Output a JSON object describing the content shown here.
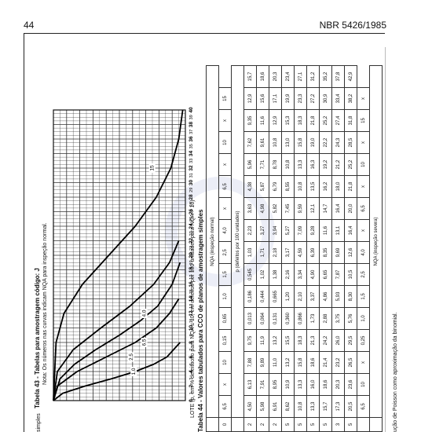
{
  "header": {
    "page_number": "44",
    "doc_code": "NBR 5426/1985"
  },
  "side_notes": {
    "simples_top": "simples",
    "poisson": "ução de Poisson como aproximação da binomial."
  },
  "table43": {
    "title": "Tabela 43 - Tabelas para amostragem código: J",
    "note": "Nota: Os números nas curvas indicam NQA para inspeção normal.",
    "lote": "LOTE (p, em % defeituoso para NQA ≤ 10; em defeitos por 100 unidades para NQA > 10)",
    "curve_labels": [
      "15",
      "6,5",
      "4,0",
      "2,5",
      "1,0"
    ],
    "x_ticks": [
      "0",
      "2",
      "4",
      "6",
      "8",
      "10",
      "12",
      "14",
      "16",
      "18",
      "20",
      "22",
      "24",
      "26",
      "28",
      "30",
      "32",
      "34",
      "36",
      "38",
      "40"
    ],
    "x_ticks_minor": [
      "1",
      "3",
      "5",
      "7",
      "9",
      "11",
      "13",
      "15",
      "17",
      "19",
      "21",
      "23",
      "25",
      "27",
      "29",
      "31",
      "33",
      "35",
      "37",
      "39"
    ]
  },
  "chart_data": {
    "type": "line",
    "title": "",
    "xlabel": "LOTE (p, em % defeituoso para NQA ≤ 10; em defeitos por 100 unidades para NQA > 10)",
    "ylabel": "",
    "xlim": [
      0,
      40
    ],
    "ylim": [
      0,
      100
    ],
    "grid": true,
    "series": [
      {
        "name": "1,0",
        "x": [
          0,
          1,
          2,
          3,
          4,
          5,
          6,
          8
        ],
        "y": [
          100,
          93,
          76,
          56,
          38,
          24,
          14,
          4
        ]
      },
      {
        "name": "2,5",
        "x": [
          0,
          2,
          4,
          6,
          8,
          10,
          12,
          14
        ],
        "y": [
          100,
          97,
          82,
          60,
          38,
          22,
          12,
          5
        ]
      },
      {
        "name": "4,0",
        "x": [
          0,
          3,
          5,
          7,
          9,
          11,
          13,
          16,
          19
        ],
        "y": [
          100,
          95,
          84,
          68,
          50,
          34,
          21,
          10,
          4
        ]
      },
      {
        "name": "6,5",
        "x": [
          0,
          4,
          7,
          10,
          13,
          16,
          19,
          22
        ],
        "y": [
          100,
          97,
          85,
          64,
          42,
          24,
          12,
          5
        ]
      },
      {
        "name": "15",
        "x": [
          0,
          8,
          12,
          16,
          20,
          24,
          28,
          32,
          36,
          40
        ],
        "y": [
          100,
          98,
          92,
          78,
          58,
          38,
          22,
          11,
          5,
          2
        ]
      }
    ]
  },
  "table44": {
    "title": "Tabela 44 - Valores tabulados para CCO de planos de amostragem simples",
    "top_header": "NQA (inspeção normal)",
    "p_header": "p (defeitos por 100 unidades)",
    "bottom_header": "NQA (inspeção severa)",
    "top_nqa": [
      "0",
      "6,5",
      "x",
      "10",
      "0,15",
      "0,65",
      "1,0",
      "1,5",
      "2,5",
      "4,0",
      "x",
      "6,5",
      "x",
      "10",
      "x",
      "15"
    ],
    "rows": [
      [
        "2",
        "4,50",
        "6,13",
        "7,88",
        "9,75",
        "0,013",
        "0,186",
        "0,545",
        "1,03",
        "2,23",
        "3,63",
        "4,38",
        "5,96",
        "7,62",
        "9,35",
        "12,9",
        "15,7"
      ],
      [
        "2",
        "5,98",
        "7,91",
        "9,89",
        "11,9",
        "0,064",
        "0,444",
        "1,02",
        "1,71",
        "3,27",
        "4,98",
        "5,87",
        "7,71",
        "9,61",
        "11,6",
        "15,6",
        "18,6"
      ],
      [
        "2",
        "6,91",
        "8,95",
        "11,0",
        "13,2",
        "0,131",
        "0,665",
        "1,38",
        "2,18",
        "3,94",
        "5,82",
        "6,79",
        "8,78",
        "10,8",
        "12,9",
        "17,1",
        "20,3"
      ],
      [
        "5",
        "8,62",
        "10,9",
        "13,2",
        "15,5",
        "0,360",
        "1,20",
        "2,16",
        "3,17",
        "5,27",
        "7,45",
        "8,55",
        "10,8",
        "13,0",
        "15,3",
        "19,9",
        "23,4"
      ],
      [
        "5",
        "10,8",
        "13,3",
        "15,8",
        "18,3",
        "0,866",
        "2,10",
        "3,34",
        "4,59",
        "7,09",
        "9,59",
        "10,8",
        "13,3",
        "15,8",
        "18,3",
        "23,3",
        "27,1"
      ],
      [
        "5",
        "13,3",
        "16,0",
        "18,6",
        "21,3",
        "1,73",
        "3,37",
        "4,90",
        "6,39",
        "9,28",
        "12,1",
        "13,5",
        "16,3",
        "19,0",
        "21,8",
        "27,2",
        "31,2"
      ],
      [
        "5",
        "15,7",
        "18,6",
        "21,4",
        "24,2",
        "2,88",
        "4,86",
        "6,65",
        "8,35",
        "11,6",
        "14,7",
        "16,2",
        "19,2",
        "22,2",
        "25,2",
        "30,9",
        "35,2"
      ],
      [
        "3",
        "17,3",
        "20,3",
        "23,2",
        "26,0",
        "3,75",
        "5,93",
        "7,87",
        "9,69",
        "13,1",
        "16,4",
        "18,0",
        "21,2",
        "24,3",
        "27,4",
        "33,4",
        "37,8"
      ],
      [
        "5",
        "20,5",
        "23,6",
        "26,5",
        "29,5",
        "5,76",
        "8,30",
        "10,5",
        "12,6",
        "16,4",
        "20,0",
        "21,8",
        "25,2",
        "28,5",
        "31,8",
        "38,2",
        "42,9"
      ]
    ],
    "bottom_nqa": [
      "6,5",
      "10",
      "x",
      "0,25",
      "1,0",
      "1,5",
      "2,5",
      "4,0",
      "x",
      "6,5",
      "x",
      "10",
      "x",
      "15",
      "x"
    ]
  }
}
